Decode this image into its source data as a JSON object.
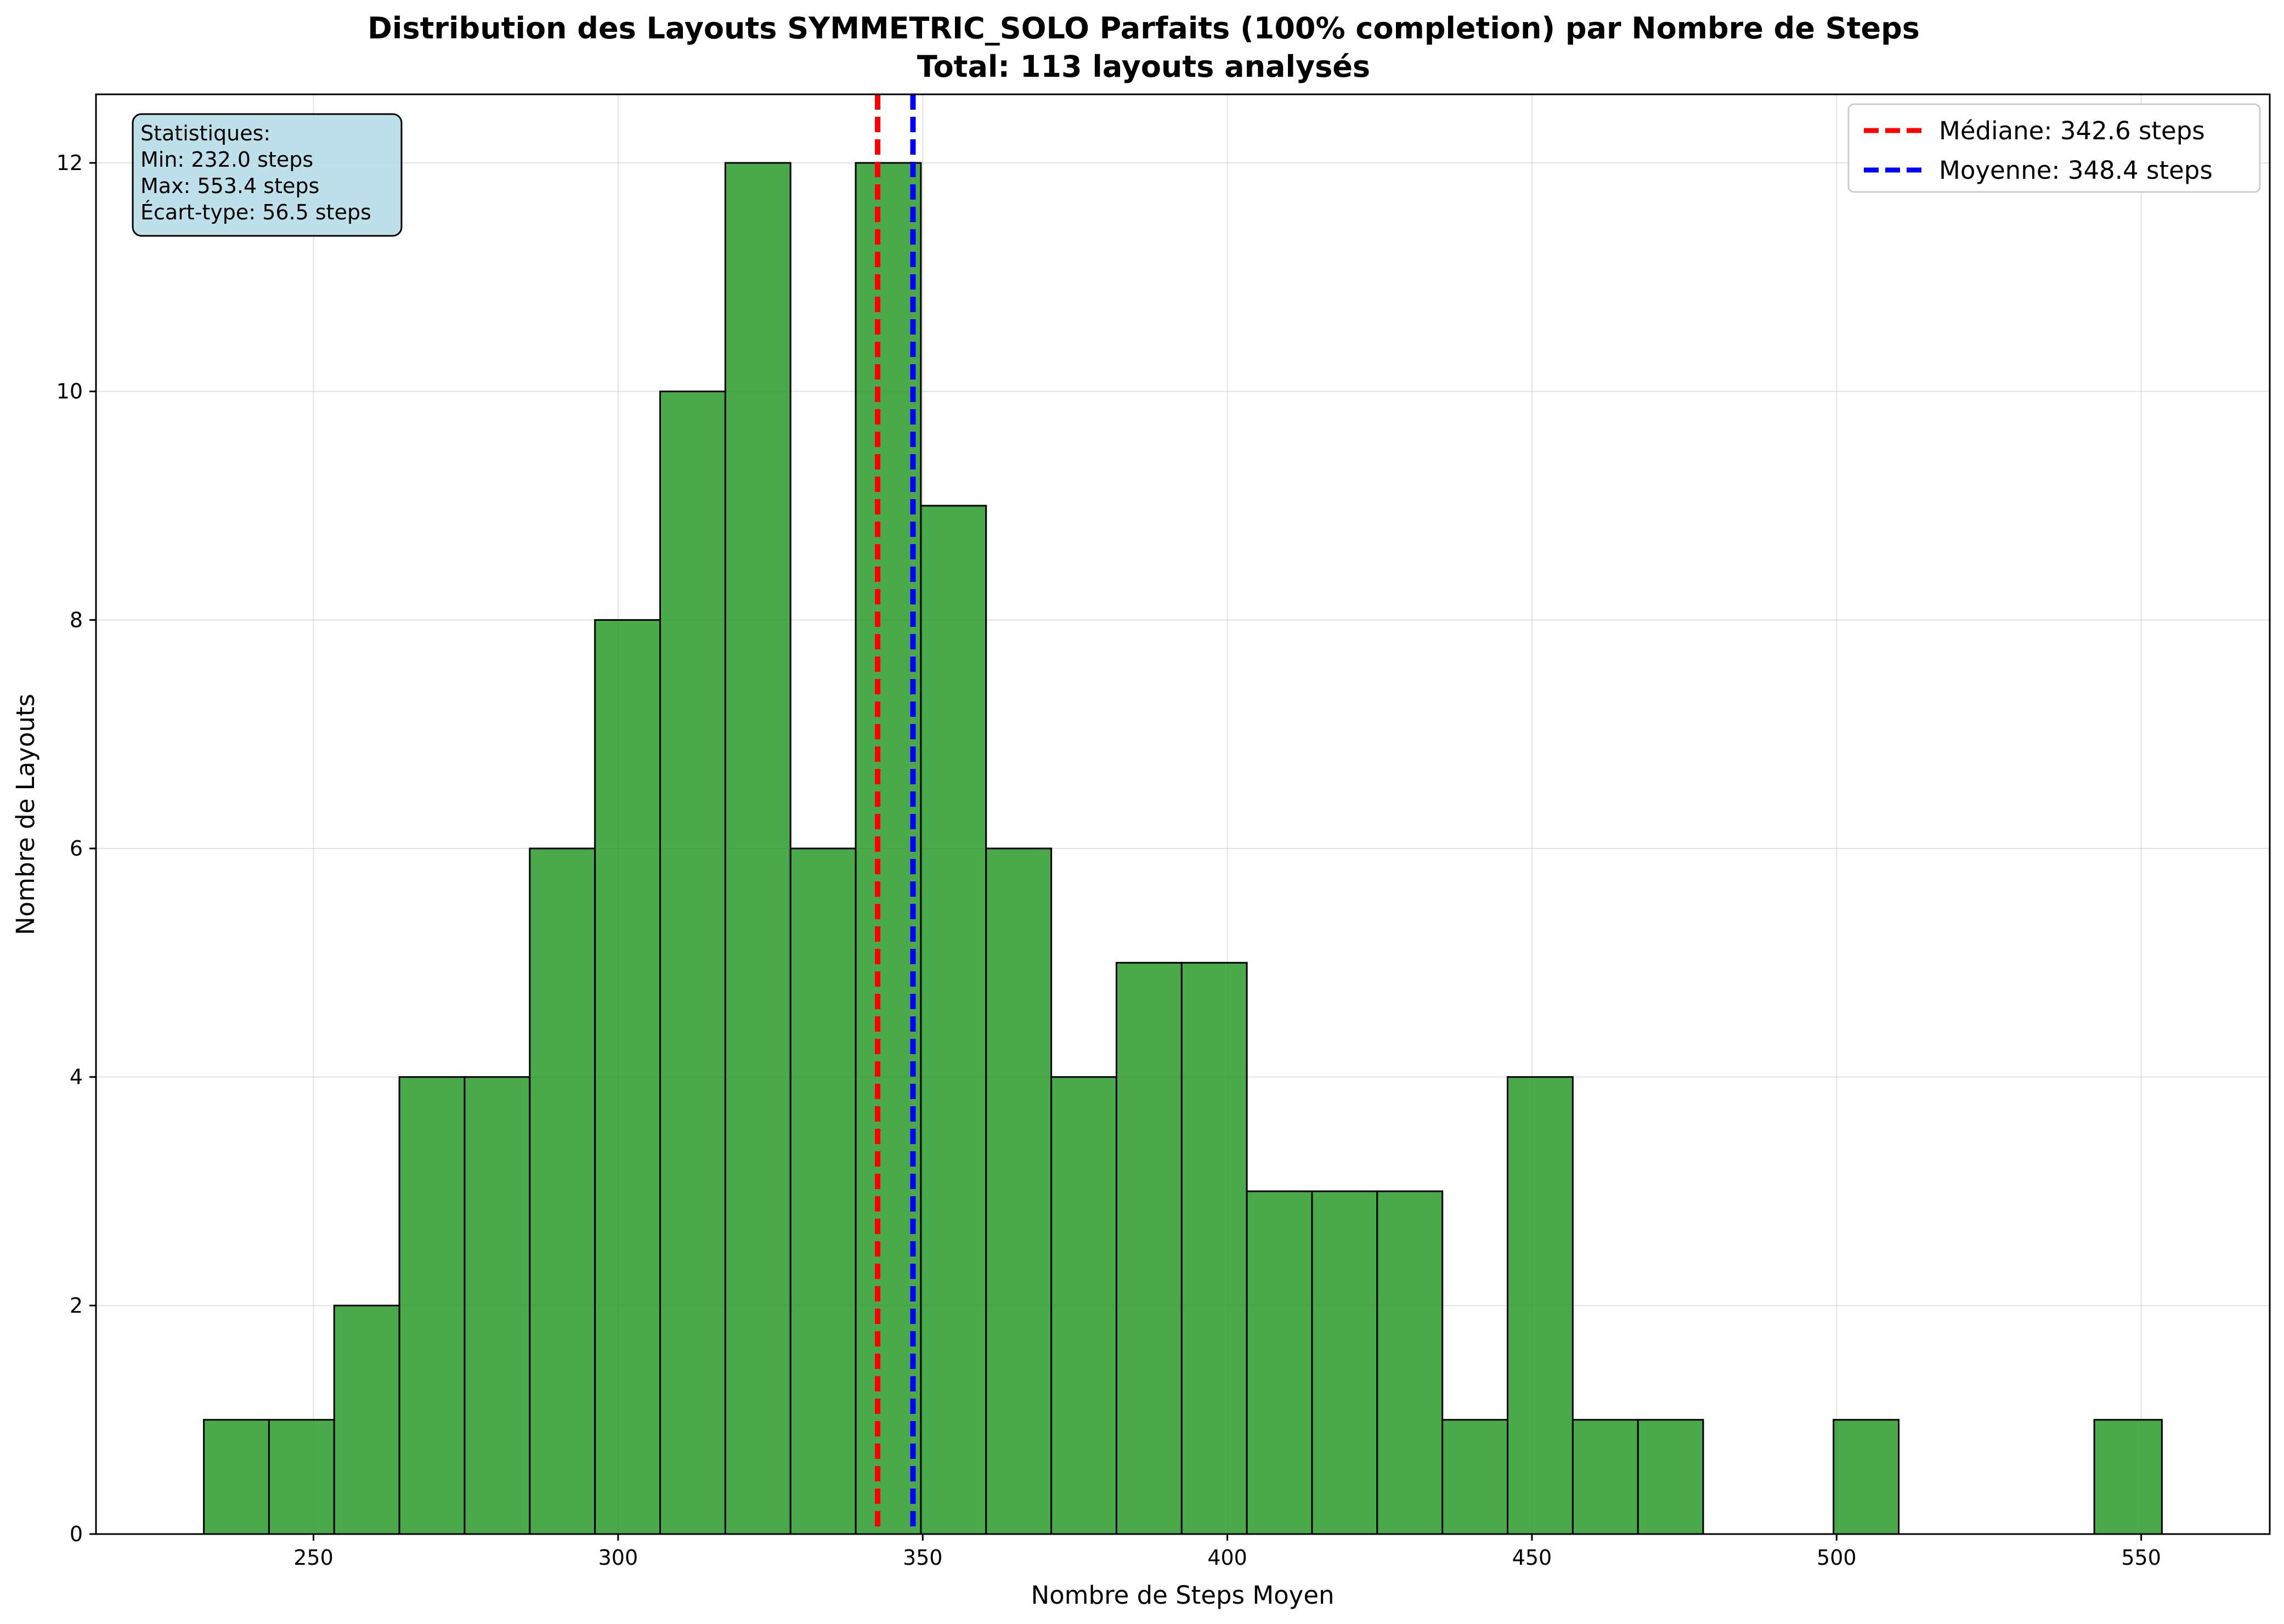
{
  "chart_data": {
    "type": "bar",
    "title": "Distribution des Layouts SYMMETRIC_SOLO Parfaits (100% completion) par Nombre de Steps",
    "subtitle": "Total: 113 layouts analysés",
    "xlabel": "Nombre de Steps Moyen",
    "ylabel": "Nombre de Layouts",
    "xlim": [
      214.3,
      571.1
    ],
    "ylim": [
      0,
      12.6
    ],
    "x_ticks": [
      250,
      300,
      350,
      400,
      450,
      500,
      550
    ],
    "y_ticks": [
      0,
      2,
      4,
      6,
      8,
      10,
      12
    ],
    "grid": true,
    "legend_position": "top-right",
    "bin_edges": [
      232.0,
      242.7,
      253.4,
      264.1,
      274.8,
      285.5,
      296.2,
      306.9,
      317.6,
      328.3,
      339.0,
      349.7,
      360.4,
      371.1,
      381.8,
      392.5,
      403.2,
      413.9,
      424.6,
      435.3,
      446.0,
      456.7,
      467.4,
      478.1,
      488.8,
      499.5,
      510.2,
      520.9,
      531.6,
      542.3,
      553.4
    ],
    "counts": [
      1,
      1,
      2,
      4,
      4,
      6,
      8,
      10,
      12,
      6,
      12,
      9,
      6,
      4,
      5,
      5,
      3,
      3,
      3,
      1,
      4,
      1,
      1,
      0,
      0,
      1,
      0,
      0,
      0,
      1
    ],
    "bar_color": "#2a9a2a",
    "median": {
      "value": 342.6,
      "label": "Médiane: 342.6 steps",
      "color": "#ff0000"
    },
    "mean": {
      "value": 348.4,
      "label": "Moyenne: 348.4 steps",
      "color": "#0000ff"
    },
    "stats_box": {
      "lines": [
        "Statistiques:",
        "Min: 232.0 steps",
        "Max: 553.4 steps",
        "Écart-type: 56.5 steps"
      ],
      "background": "#add8e6"
    }
  }
}
